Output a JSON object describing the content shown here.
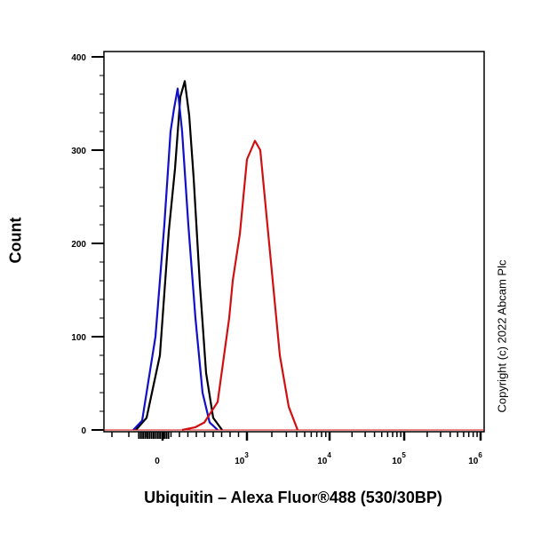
{
  "chart_data": {
    "type": "line",
    "title": "",
    "xlabel": "Ubiquitin – Alexa Fluor®488 (530/30BP)",
    "ylabel": "Count",
    "ylim": [
      0,
      400
    ],
    "yticks": [
      0,
      100,
      200,
      300,
      400
    ],
    "xticks": [
      {
        "value": 0,
        "base": "0",
        "exp": ""
      },
      {
        "value": 1000,
        "base": "10",
        "exp": "3"
      },
      {
        "value": 10000,
        "base": "10",
        "exp": "4"
      },
      {
        "value": 100000,
        "base": "10",
        "exp": "5"
      },
      {
        "value": 1000000,
        "base": "10",
        "exp": "6"
      }
    ],
    "xscale": "biexponential",
    "series": [
      {
        "name": "black",
        "color": "#000000",
        "points": [
          [
            -316,
            0
          ],
          [
            -189,
            13
          ],
          [
            -32,
            80
          ],
          [
            74,
            213
          ],
          [
            147,
            280
          ],
          [
            211,
            357
          ],
          [
            263,
            374
          ],
          [
            316,
            337
          ],
          [
            368,
            270
          ],
          [
            442,
            156
          ],
          [
            516,
            61
          ],
          [
            600,
            13
          ],
          [
            705,
            0
          ]
        ]
      },
      {
        "name": "blue",
        "color": "#1010c8",
        "points": [
          [
            -347,
            0
          ],
          [
            -242,
            10
          ],
          [
            -84,
            100
          ],
          [
            21,
            220
          ],
          [
            95,
            320
          ],
          [
            137,
            345
          ],
          [
            179,
            366
          ],
          [
            232,
            320
          ],
          [
            305,
            220
          ],
          [
            389,
            120
          ],
          [
            474,
            40
          ],
          [
            558,
            8
          ],
          [
            653,
            0
          ]
        ]
      },
      {
        "name": "red",
        "color": "#d01010",
        "points": [
          [
            232,
            0
          ],
          [
            389,
            3
          ],
          [
            495,
            8
          ],
          [
            653,
            30
          ],
          [
            789,
            120
          ],
          [
            832,
            160
          ],
          [
            916,
            210
          ],
          [
            1000,
            290
          ],
          [
            1250,
            310
          ],
          [
            1450,
            300
          ],
          [
            1640,
            250
          ],
          [
            1950,
            180
          ],
          [
            2500,
            80
          ],
          [
            3200,
            25
          ],
          [
            4100,
            0
          ]
        ]
      }
    ],
    "annotation": "Copyright (c) 2022 Abcam Plc"
  }
}
